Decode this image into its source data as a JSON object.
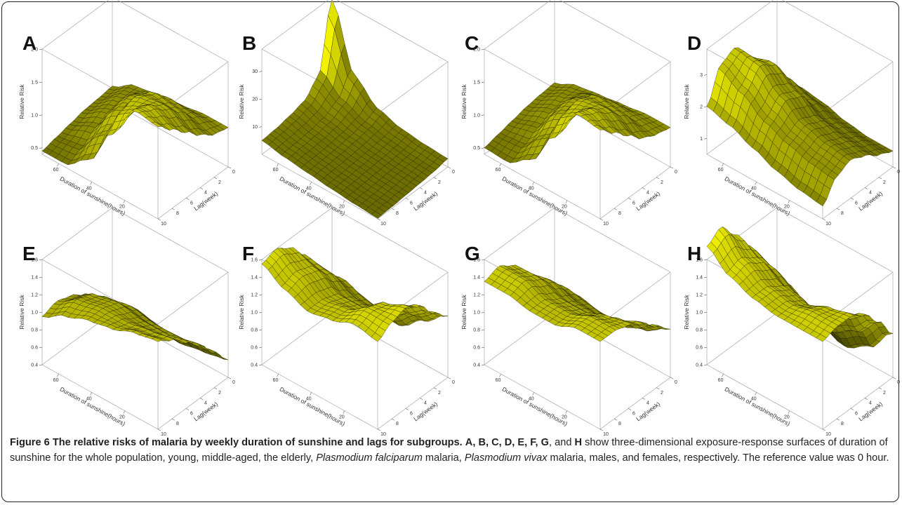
{
  "caption": {
    "title": "Figure 6 The relative risks of malaria by weekly duration of sunshine and lags for subgroups.",
    "keys": "A, B, C, D, E, F, G",
    "and_word": ", and ",
    "last_key": "H",
    "text1": " show three-dimensional exposure-response surfaces of duration of sunshine for the whole population, young, middle-aged, the elderly, ",
    "species1": "Plasmodium falciparum",
    "text2": " malaria, ",
    "species2": "Plasmodium vivax",
    "text3": " malaria, males, and females, respectively. The reference value was 0 hour."
  },
  "colors": {
    "surface_light": "#f2f200",
    "surface_dark": "#3a3a00",
    "mesh": "#1a1a00",
    "box": "#999999"
  },
  "chart_data": [
    {
      "type": "surface3d",
      "panel": "A",
      "xlabel": "Duration of sunshine(hours)",
      "ylabel": "Lag(week)",
      "zlabel": "Relative Risk",
      "x_ticks": [
        "60",
        "40",
        "20"
      ],
      "y_ticks": [
        "0",
        "2",
        "4",
        "6",
        "8",
        "10"
      ],
      "z_ticks": [
        "0.5",
        "1.0",
        "1.5",
        "2.0"
      ],
      "z_tick_values": [
        0.5,
        1.0,
        1.5,
        2.0
      ],
      "zlim": [
        0.4,
        2.0
      ],
      "x_range": [
        70,
        0
      ],
      "y_range": [
        0,
        10
      ],
      "grid_z": [
        [
          0.65,
          0.85,
          0.9,
          0.95,
          1.0,
          1.0
        ],
        [
          0.62,
          0.85,
          1.1,
          1.2,
          1.15,
          1.05
        ],
        [
          0.6,
          0.8,
          1.2,
          1.45,
          1.4,
          1.2
        ],
        [
          0.55,
          0.7,
          1.15,
          1.55,
          1.6,
          1.4
        ],
        [
          0.5,
          0.55,
          0.95,
          1.5,
          1.75,
          1.6
        ],
        [
          0.45,
          0.45,
          0.7,
          1.3,
          1.85,
          1.8
        ]
      ]
    },
    {
      "type": "surface3d",
      "panel": "B",
      "xlabel": "Duration of sunshine(hours)",
      "ylabel": "Lag(week)",
      "zlabel": "Relative Risk",
      "x_ticks": [
        "60",
        "40",
        "20"
      ],
      "y_ticks": [
        "0",
        "2",
        "4",
        "6",
        "8",
        "10"
      ],
      "z_ticks": [
        "10",
        "20",
        "30"
      ],
      "z_tick_values": [
        10,
        20,
        30
      ],
      "zlim": [
        0,
        38
      ],
      "x_range": [
        70,
        0
      ],
      "y_range": [
        0,
        10
      ],
      "grid_z": [
        [
          37.0,
          14.0,
          7.0,
          4.5,
          3.5,
          3.0
        ],
        [
          13.0,
          8.0,
          5.0,
          3.5,
          2.5,
          2.0
        ],
        [
          8.0,
          5.5,
          4.0,
          2.8,
          2.0,
          1.5
        ],
        [
          6.5,
          4.5,
          3.2,
          2.3,
          1.5,
          1.0
        ],
        [
          5.5,
          4.0,
          2.8,
          1.8,
          1.0,
          0.5
        ],
        [
          5.0,
          3.5,
          2.5,
          1.5,
          0.7,
          0.2
        ]
      ]
    },
    {
      "type": "surface3d",
      "panel": "C",
      "xlabel": "Duration of sunshine(hours)",
      "ylabel": "Lag(week)",
      "zlabel": "Relative Risk",
      "x_ticks": [
        "60",
        "40",
        "20"
      ],
      "y_ticks": [
        "0",
        "2",
        "4",
        "6",
        "8",
        "10"
      ],
      "z_ticks": [
        "0.5",
        "1.0",
        "1.5",
        "2.0"
      ],
      "z_tick_values": [
        0.5,
        1.0,
        1.5,
        2.0
      ],
      "zlim": [
        0.4,
        2.0
      ],
      "x_range": [
        70,
        0
      ],
      "y_range": [
        0,
        10
      ],
      "grid_z": [
        [
          0.7,
          0.85,
          0.9,
          0.95,
          1.0,
          1.0
        ],
        [
          0.68,
          0.85,
          1.05,
          1.15,
          1.1,
          1.05
        ],
        [
          0.65,
          0.8,
          1.15,
          1.4,
          1.35,
          1.15
        ],
        [
          0.6,
          0.7,
          1.1,
          1.5,
          1.55,
          1.35
        ],
        [
          0.55,
          0.58,
          0.9,
          1.45,
          1.7,
          1.55
        ],
        [
          0.5,
          0.48,
          0.7,
          1.25,
          1.8,
          1.75
        ]
      ]
    },
    {
      "type": "surface3d",
      "panel": "D",
      "xlabel": "Duration of sunshine(hours)",
      "ylabel": "Lag(week)",
      "zlabel": "Relative Risk",
      "x_ticks": [
        "60",
        "40",
        "20"
      ],
      "y_ticks": [
        "0",
        "2",
        "4",
        "6",
        "8",
        "10"
      ],
      "z_ticks": [
        "1",
        "2",
        "3"
      ],
      "z_tick_values": [
        1,
        2,
        3
      ],
      "zlim": [
        0.5,
        3.8
      ],
      "x_range": [
        70,
        0
      ],
      "y_range": [
        0,
        10
      ],
      "grid_z": [
        [
          1.2,
          1.4,
          1.3,
          1.1,
          1.0,
          1.0
        ],
        [
          1.8,
          2.0,
          1.7,
          1.4,
          1.3,
          1.2
        ],
        [
          2.6,
          2.8,
          2.3,
          1.8,
          1.6,
          1.5
        ],
        [
          3.2,
          3.1,
          2.5,
          2.0,
          1.8,
          1.7
        ],
        [
          3.0,
          2.6,
          2.1,
          1.8,
          1.6,
          1.5
        ],
        [
          2.0,
          1.8,
          1.5,
          1.2,
          1.0,
          0.9
        ]
      ]
    },
    {
      "type": "surface3d",
      "panel": "E",
      "xlabel": "Duration of sunshine(hours)",
      "ylabel": "Lag(week)",
      "zlabel": "Relative Risk",
      "x_ticks": [
        "60",
        "40",
        "20"
      ],
      "y_ticks": [
        "0",
        "2",
        "4",
        "6",
        "8",
        "10"
      ],
      "z_ticks": [
        "0.4",
        "0.6",
        "0.8",
        "1.0",
        "1.2",
        "1.4",
        "1.6"
      ],
      "z_tick_values": [
        0.4,
        0.6,
        0.8,
        1.0,
        1.2,
        1.4,
        1.6
      ],
      "zlim": [
        0.4,
        1.6
      ],
      "x_range": [
        70,
        0
      ],
      "y_range": [
        0,
        10
      ],
      "grid_z": [
        [
          0.55,
          0.6,
          0.55,
          0.5,
          0.55,
          0.6
        ],
        [
          0.7,
          0.75,
          0.75,
          0.7,
          0.75,
          0.8
        ],
        [
          0.85,
          0.95,
          1.0,
          0.95,
          0.95,
          1.0
        ],
        [
          0.95,
          1.1,
          1.15,
          1.1,
          1.1,
          1.15
        ],
        [
          1.0,
          1.15,
          1.2,
          1.2,
          1.25,
          1.3
        ],
        [
          0.95,
          1.1,
          1.2,
          1.25,
          1.35,
          1.4
        ]
      ]
    },
    {
      "type": "surface3d",
      "panel": "F",
      "xlabel": "Duration of sunshine(hours)",
      "ylabel": "Lag(week)",
      "zlabel": "Relative Risk",
      "x_ticks": [
        "60",
        "40",
        "20"
      ],
      "y_ticks": [
        "0",
        "2",
        "4",
        "6",
        "8",
        "10"
      ],
      "z_ticks": [
        "0.4",
        "0.6",
        "0.8",
        "1.0",
        "1.2",
        "1.4",
        "1.6"
      ],
      "z_tick_values": [
        0.4,
        0.6,
        0.8,
        1.0,
        1.2,
        1.4,
        1.6
      ],
      "zlim": [
        0.4,
        1.6
      ],
      "x_range": [
        70,
        0
      ],
      "y_range": [
        0,
        10
      ],
      "grid_z": [
        [
          0.7,
          0.8,
          0.75,
          0.7,
          0.9,
          1.1
        ],
        [
          1.0,
          1.05,
          0.95,
          0.9,
          1.1,
          1.25
        ],
        [
          1.3,
          1.25,
          1.1,
          1.1,
          1.3,
          1.45
        ],
        [
          1.5,
          1.4,
          1.25,
          1.25,
          1.45,
          1.55
        ],
        [
          1.6,
          1.45,
          1.3,
          1.35,
          1.5,
          1.5
        ],
        [
          1.55,
          1.4,
          1.3,
          1.35,
          1.45,
          1.4
        ]
      ]
    },
    {
      "type": "surface3d",
      "panel": "G",
      "xlabel": "Duration of sunshine(hours)",
      "ylabel": "Lag(week)",
      "zlabel": "Relative Risk",
      "x_ticks": [
        "60",
        "40",
        "20"
      ],
      "y_ticks": [
        "0",
        "2",
        "4",
        "6",
        "8",
        "10"
      ],
      "z_ticks": [
        "0.4",
        "0.6",
        "0.8",
        "1.0",
        "1.2",
        "1.4",
        "1.6"
      ],
      "z_tick_values": [
        0.4,
        0.6,
        0.8,
        1.0,
        1.2,
        1.4,
        1.6
      ],
      "zlim": [
        0.4,
        1.6
      ],
      "x_range": [
        70,
        0
      ],
      "y_range": [
        0,
        10
      ],
      "grid_z": [
        [
          0.7,
          0.75,
          0.7,
          0.7,
          0.8,
          0.95
        ],
        [
          0.9,
          0.95,
          0.9,
          0.85,
          0.95,
          1.1
        ],
        [
          1.1,
          1.15,
          1.05,
          1.05,
          1.15,
          1.25
        ],
        [
          1.3,
          1.3,
          1.2,
          1.2,
          1.3,
          1.35
        ],
        [
          1.4,
          1.4,
          1.3,
          1.3,
          1.4,
          1.4
        ],
        [
          1.35,
          1.35,
          1.3,
          1.3,
          1.4,
          1.4
        ]
      ]
    },
    {
      "type": "surface3d",
      "panel": "H",
      "xlabel": "Duration of sunshine(hours)",
      "ylabel": "Lag(week)",
      "zlabel": "Relative Risk",
      "x_ticks": [
        "60",
        "40",
        "20"
      ],
      "y_ticks": [
        "0",
        "2",
        "4",
        "6",
        "8",
        "10"
      ],
      "z_ticks": [
        "0.4",
        "0.6",
        "0.8",
        "1.0",
        "1.2",
        "1.4",
        "1.6"
      ],
      "z_tick_values": [
        0.4,
        0.6,
        0.8,
        1.0,
        1.2,
        1.4,
        1.6
      ],
      "zlim": [
        0.4,
        1.6
      ],
      "x_range": [
        70,
        0
      ],
      "y_range": [
        0,
        10
      ],
      "grid_z": [
        [
          0.8,
          0.7,
          0.55,
          0.45,
          0.6,
          0.9
        ],
        [
          1.1,
          1.0,
          0.85,
          0.75,
          0.9,
          1.15
        ],
        [
          1.4,
          1.3,
          1.15,
          1.05,
          1.2,
          1.35
        ],
        [
          1.65,
          1.5,
          1.35,
          1.3,
          1.4,
          1.45
        ],
        [
          1.85,
          1.6,
          1.45,
          1.4,
          1.45,
          1.45
        ],
        [
          1.75,
          1.55,
          1.45,
          1.4,
          1.4,
          1.4
        ]
      ]
    }
  ]
}
